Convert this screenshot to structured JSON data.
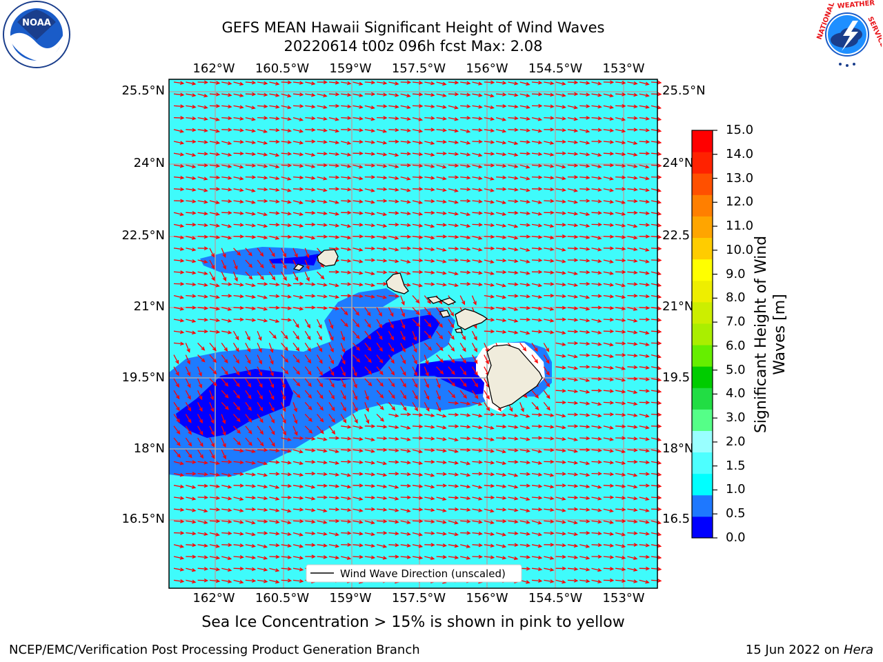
{
  "title": {
    "line1": "GEFS MEAN Hawaii Significant Height of Wind Waves",
    "line2": "20220614 t00z 096h fcst   Max: 2.08"
  },
  "axes": {
    "lon_labels": [
      "162°W",
      "160.5°W",
      "159°W",
      "157.5°W",
      "156°W",
      "154.5°W",
      "153°W"
    ],
    "lat_labels": [
      "25.5°N",
      "24°N",
      "22.5°N",
      "21°N",
      "19.5°N",
      "18°N",
      "16.5°N"
    ],
    "lat_labels_right": [
      "25.5°N",
      "24°N",
      "22.5",
      "21°N",
      "19.5",
      "18°N",
      "16.5"
    ]
  },
  "legend": {
    "label": "Wind Wave Direction (unscaled)"
  },
  "colorbar": {
    "title": "Significant Height of Wind Waves [m]",
    "ticks": [
      "15.0",
      "14.0",
      "13.0",
      "12.0",
      "11.0",
      "10.0",
      "9.0",
      "8.0",
      "7.0",
      "6.0",
      "5.0",
      "4.0",
      "3.0",
      "2.0",
      "1.5",
      "1.0",
      "0.5",
      "0.0"
    ],
    "colors": [
      "#0000ff",
      "#1e78ff",
      "#00ffff",
      "#4dffff",
      "#99ffff",
      "#55ff88",
      "#22dd44",
      "#00cc00",
      "#66ee00",
      "#aaee00",
      "#ccee00",
      "#eeee00",
      "#ffff00",
      "#ffcc00",
      "#ffa500",
      "#ff7f00",
      "#ff5000",
      "#ff2200",
      "#ff0000"
    ]
  },
  "colors": {
    "ocean": "#3ffbfb",
    "moderate": "#1e7bff",
    "high": "#0000ff",
    "land": "#f0ecdc",
    "arrows": "#ff0000"
  },
  "footer": {
    "sea_ice": "Sea Ice Concentration > 15% is shown in pink to yellow",
    "credit": "NCEP/EMC/Verification Post Processing Product Generation Branch",
    "date": "15 Jun 2022 on",
    "host": "Hera"
  },
  "logos": {
    "left": "noaa-logo",
    "left_text": "NOAA",
    "right": "nws-logo",
    "right_text": "NATIONAL WEATHER SERVICE"
  }
}
